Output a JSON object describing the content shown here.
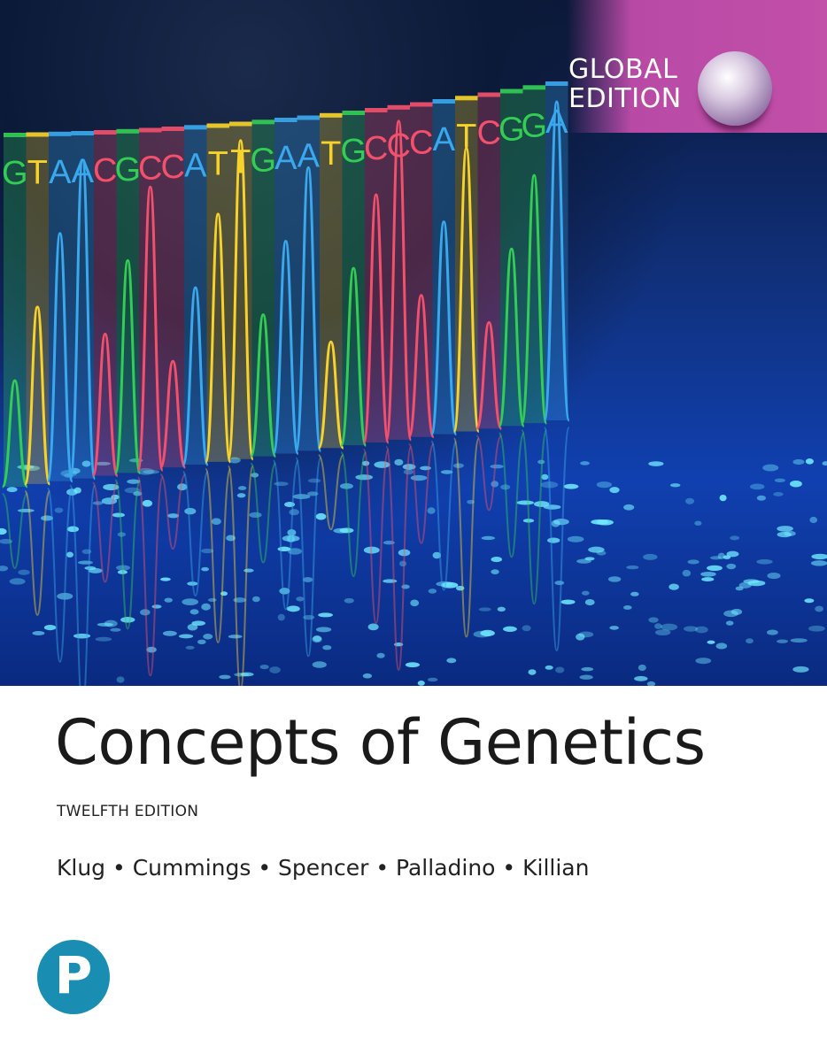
{
  "cover": {
    "badge": {
      "line1": "GLOBAL",
      "line2": "EDITION",
      "color": "#c24fa8"
    },
    "sequence": [
      "G",
      "T",
      "A",
      "A",
      "C",
      "G",
      "C",
      "C",
      "A",
      "T",
      "T",
      "G",
      "A",
      "A",
      "T",
      "G",
      "C",
      "C",
      "C",
      "A",
      "T",
      "C",
      "G",
      "G",
      "A"
    ],
    "base_colors": {
      "G": "#33cc55",
      "T": "#f6d22a",
      "A": "#3aa8ec",
      "C": "#f2506c"
    },
    "title": "Concepts of Genetics",
    "edition": "TWELFTH EDITION",
    "authors": "Klug • Cummings • Spencer • Palladino • Killian",
    "publisher_logo": {
      "letter": "P",
      "color": "#1a8eb2"
    }
  }
}
